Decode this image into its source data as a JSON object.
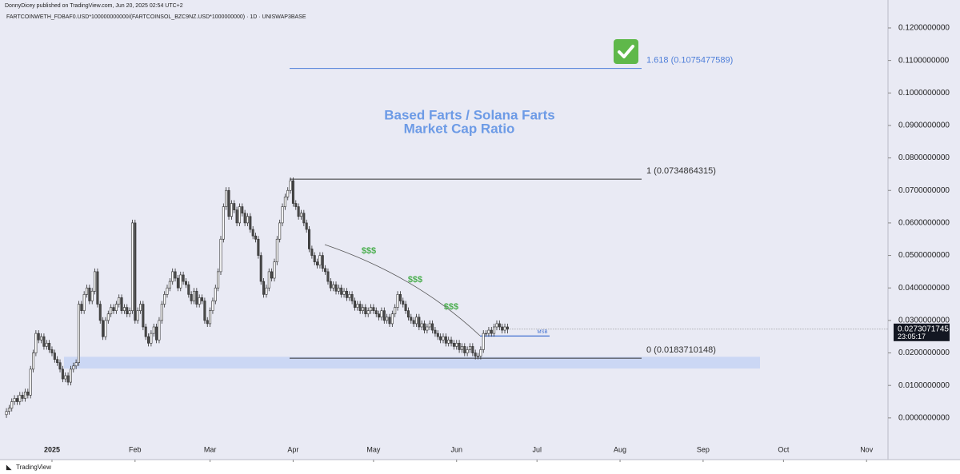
{
  "chart_data": {
    "type": "candlestick",
    "published": "DonnyDicey published on TradingView.com, Jun 20, 2025 02:54 UTC+2",
    "symbol": "FARTCOINWETH_FDBAF0.USD*100000000000/(FARTCOINSOL_BZC9NZ.USD*1000000000) · 1D · UNISWAP3BASE",
    "title_lines": [
      "Based Farts / Solana Farts",
      "Market Cap Ratio"
    ],
    "annotations": [
      "$$$",
      "$$$",
      "$$$"
    ],
    "countdown": "23:05:17",
    "brand": "TradingView",
    "up_color": "#ffffff",
    "down_color": "#4a4a4a",
    "outline_color": "#2f2f2f",
    "categories": [
      null,
      null,
      null,
      null,
      null,
      null,
      null,
      null,
      null,
      null,
      null,
      null,
      null,
      null,
      null,
      null,
      null,
      null,
      null,
      null,
      null,
      null,
      null,
      null,
      null,
      null,
      null,
      null,
      null,
      null,
      null,
      null,
      null,
      null,
      null,
      null,
      null,
      null,
      null,
      null,
      null,
      null,
      null,
      null,
      null,
      null,
      null,
      null,
      null,
      null,
      null,
      null,
      null,
      null,
      null,
      null,
      null,
      null,
      null,
      null,
      null,
      null,
      null,
      null,
      null,
      null,
      null,
      null,
      null,
      null,
      null,
      null,
      null,
      null,
      null,
      null,
      null,
      null,
      null,
      null,
      null,
      null,
      null,
      null,
      null,
      null,
      null,
      null,
      null,
      null,
      null,
      null,
      null,
      null,
      null,
      null,
      null,
      null,
      null,
      null,
      null,
      null,
      null,
      null,
      null,
      null,
      null,
      null,
      null,
      null,
      null,
      null,
      null,
      null,
      null,
      null,
      null,
      null,
      null,
      null,
      null,
      null,
      null,
      null,
      null,
      null,
      null,
      null,
      null,
      null,
      null,
      null,
      null,
      null,
      null,
      null,
      null,
      null,
      null,
      null,
      null,
      null,
      null,
      null,
      null,
      null,
      null,
      null,
      null,
      null,
      null,
      null,
      null,
      null,
      null,
      null,
      null,
      null,
      null,
      null,
      null,
      null,
      null,
      null,
      null,
      null,
      null,
      null,
      null,
      null,
      null,
      null,
      null,
      null,
      null,
      null,
      null,
      null,
      null,
      null,
      null,
      null,
      null,
      null,
      null,
      null,
      null,
      null
    ],
    "open": [
      0.001,
      0.002,
      0.003,
      0.005,
      0.006,
      0.005,
      0.007,
      0.006,
      0.008,
      0.007,
      0.015,
      0.02,
      0.026,
      0.024,
      0.025,
      0.022,
      0.023,
      0.021,
      0.02,
      0.018,
      0.017,
      0.015,
      0.012,
      0.013,
      0.011,
      0.015,
      0.016,
      0.017,
      0.035,
      0.033,
      0.038,
      0.04,
      0.036,
      0.039,
      0.045,
      0.035,
      0.03,
      0.025,
      0.03,
      0.032,
      0.034,
      0.033,
      0.035,
      0.037,
      0.033,
      0.034,
      0.032,
      0.033,
      0.06,
      0.03,
      0.033,
      0.035,
      0.028,
      0.025,
      0.023,
      0.026,
      0.028,
      0.024,
      0.03,
      0.035,
      0.038,
      0.04,
      0.042,
      0.045,
      0.043,
      0.04,
      0.044,
      0.042,
      0.041,
      0.038,
      0.036,
      0.039,
      0.035,
      0.037,
      0.036,
      0.03,
      0.029,
      0.033,
      0.036,
      0.04,
      0.045,
      0.055,
      0.065,
      0.07,
      0.062,
      0.066,
      0.064,
      0.06,
      0.065,
      0.063,
      0.06,
      0.062,
      0.058,
      0.056,
      0.055,
      0.05,
      0.042,
      0.038,
      0.04,
      0.045,
      0.043,
      0.048,
      0.055,
      0.06,
      0.065,
      0.068,
      0.07,
      0.073,
      0.066,
      0.065,
      0.062,
      0.063,
      0.06,
      0.058,
      0.052,
      0.05,
      0.048,
      0.047,
      0.05,
      0.046,
      0.045,
      0.042,
      0.04,
      0.041,
      0.039,
      0.04,
      0.038,
      0.039,
      0.037,
      0.038,
      0.036,
      0.034,
      0.035,
      0.033,
      0.034,
      0.032,
      0.033,
      0.034,
      0.033,
      0.032,
      0.031,
      0.033,
      0.03,
      0.031,
      0.029,
      0.032,
      0.034,
      0.038,
      0.036,
      0.035,
      0.033,
      0.031,
      0.03,
      0.029,
      0.031,
      0.028,
      0.029,
      0.027,
      0.028,
      0.029,
      0.027,
      0.026,
      0.025,
      0.024,
      0.025,
      0.023,
      0.024,
      0.023,
      0.022,
      0.023,
      0.021,
      0.022,
      0.02,
      0.021,
      0.022,
      0.02,
      0.019,
      0.019,
      0.021,
      0.026,
      0.026,
      0.027,
      0.026,
      0.028,
      0.029,
      0.028,
      0.027,
      0.028
    ],
    "high": [
      0.003,
      0.004,
      0.006,
      0.007,
      0.007,
      0.008,
      0.008,
      0.009,
      0.009,
      0.016,
      0.021,
      0.027,
      0.027,
      0.026,
      0.026,
      0.024,
      0.024,
      0.022,
      0.021,
      0.019,
      0.018,
      0.016,
      0.014,
      0.014,
      0.016,
      0.017,
      0.018,
      0.036,
      0.036,
      0.039,
      0.041,
      0.041,
      0.04,
      0.046,
      0.046,
      0.036,
      0.031,
      0.031,
      0.033,
      0.035,
      0.035,
      0.036,
      0.038,
      0.038,
      0.035,
      0.035,
      0.034,
      0.061,
      0.061,
      0.034,
      0.036,
      0.036,
      0.029,
      0.026,
      0.027,
      0.029,
      0.029,
      0.031,
      0.036,
      0.039,
      0.041,
      0.043,
      0.046,
      0.046,
      0.044,
      0.045,
      0.045,
      0.043,
      0.042,
      0.039,
      0.04,
      0.04,
      0.038,
      0.038,
      0.037,
      0.031,
      0.034,
      0.037,
      0.041,
      0.046,
      0.056,
      0.066,
      0.071,
      0.071,
      0.067,
      0.067,
      0.065,
      0.066,
      0.066,
      0.064,
      0.063,
      0.063,
      0.059,
      0.057,
      0.056,
      0.051,
      0.043,
      0.041,
      0.046,
      0.046,
      0.049,
      0.056,
      0.061,
      0.066,
      0.069,
      0.071,
      0.074,
      0.074,
      0.067,
      0.066,
      0.064,
      0.064,
      0.061,
      0.059,
      0.053,
      0.051,
      0.049,
      0.051,
      0.051,
      0.047,
      0.046,
      0.043,
      0.042,
      0.042,
      0.041,
      0.041,
      0.04,
      0.04,
      0.039,
      0.039,
      0.037,
      0.036,
      0.036,
      0.035,
      0.035,
      0.034,
      0.035,
      0.035,
      0.034,
      0.033,
      0.034,
      0.034,
      0.032,
      0.032,
      0.033,
      0.035,
      0.039,
      0.039,
      0.037,
      0.036,
      0.034,
      0.032,
      0.031,
      0.032,
      0.032,
      0.03,
      0.03,
      0.029,
      0.03,
      0.03,
      0.028,
      0.027,
      0.026,
      0.026,
      0.026,
      0.025,
      0.025,
      0.024,
      0.024,
      0.024,
      0.023,
      0.023,
      0.022,
      0.023,
      0.023,
      0.021,
      0.02,
      0.022,
      0.027,
      0.027,
      0.028,
      0.028,
      0.029,
      0.03,
      0.03,
      0.029,
      0.029,
      0.029
    ],
    "low": [
      0.0,
      0.001,
      0.002,
      0.004,
      0.004,
      0.004,
      0.005,
      0.005,
      0.006,
      0.006,
      0.014,
      0.019,
      0.023,
      0.023,
      0.021,
      0.021,
      0.02,
      0.019,
      0.017,
      0.016,
      0.014,
      0.011,
      0.011,
      0.01,
      0.01,
      0.014,
      0.015,
      0.016,
      0.032,
      0.032,
      0.037,
      0.035,
      0.035,
      0.038,
      0.034,
      0.029,
      0.024,
      0.024,
      0.029,
      0.031,
      0.032,
      0.032,
      0.034,
      0.032,
      0.032,
      0.031,
      0.031,
      0.032,
      0.029,
      0.029,
      0.032,
      0.027,
      0.024,
      0.022,
      0.022,
      0.025,
      0.023,
      0.023,
      0.029,
      0.034,
      0.037,
      0.039,
      0.041,
      0.042,
      0.039,
      0.039,
      0.041,
      0.04,
      0.037,
      0.035,
      0.035,
      0.034,
      0.034,
      0.035,
      0.029,
      0.028,
      0.028,
      0.032,
      0.035,
      0.039,
      0.044,
      0.054,
      0.064,
      0.061,
      0.061,
      0.063,
      0.059,
      0.059,
      0.062,
      0.059,
      0.059,
      0.057,
      0.055,
      0.054,
      0.049,
      0.041,
      0.037,
      0.037,
      0.039,
      0.042,
      0.042,
      0.047,
      0.054,
      0.059,
      0.064,
      0.067,
      0.069,
      0.065,
      0.064,
      0.061,
      0.061,
      0.059,
      0.057,
      0.051,
      0.049,
      0.047,
      0.046,
      0.046,
      0.045,
      0.044,
      0.041,
      0.039,
      0.039,
      0.038,
      0.038,
      0.037,
      0.037,
      0.036,
      0.036,
      0.035,
      0.033,
      0.033,
      0.032,
      0.032,
      0.031,
      0.031,
      0.032,
      0.032,
      0.031,
      0.03,
      0.03,
      0.029,
      0.029,
      0.028,
      0.028,
      0.031,
      0.033,
      0.035,
      0.034,
      0.032,
      0.03,
      0.029,
      0.028,
      0.028,
      0.027,
      0.027,
      0.026,
      0.026,
      0.027,
      0.026,
      0.025,
      0.024,
      0.023,
      0.023,
      0.022,
      0.022,
      0.022,
      0.021,
      0.021,
      0.02,
      0.02,
      0.019,
      0.019,
      0.02,
      0.019,
      0.018,
      0.018,
      0.018,
      0.02,
      0.025,
      0.025,
      0.025,
      0.025,
      0.027,
      0.027,
      0.026,
      0.026,
      0.026
    ],
    "close": [
      0.002,
      0.003,
      0.005,
      0.006,
      0.005,
      0.007,
      0.006,
      0.008,
      0.007,
      0.015,
      0.02,
      0.026,
      0.024,
      0.025,
      0.022,
      0.023,
      0.021,
      0.02,
      0.018,
      0.017,
      0.015,
      0.012,
      0.013,
      0.011,
      0.015,
      0.016,
      0.017,
      0.035,
      0.033,
      0.038,
      0.04,
      0.036,
      0.039,
      0.045,
      0.035,
      0.03,
      0.025,
      0.03,
      0.032,
      0.034,
      0.033,
      0.035,
      0.037,
      0.033,
      0.034,
      0.032,
      0.033,
      0.06,
      0.03,
      0.033,
      0.035,
      0.028,
      0.025,
      0.023,
      0.026,
      0.028,
      0.024,
      0.03,
      0.035,
      0.038,
      0.04,
      0.042,
      0.045,
      0.043,
      0.04,
      0.044,
      0.042,
      0.041,
      0.038,
      0.036,
      0.039,
      0.035,
      0.037,
      0.036,
      0.03,
      0.029,
      0.033,
      0.036,
      0.04,
      0.045,
      0.055,
      0.065,
      0.07,
      0.062,
      0.066,
      0.064,
      0.06,
      0.065,
      0.063,
      0.06,
      0.062,
      0.058,
      0.056,
      0.055,
      0.05,
      0.042,
      0.038,
      0.04,
      0.045,
      0.043,
      0.048,
      0.055,
      0.06,
      0.065,
      0.068,
      0.07,
      0.073,
      0.066,
      0.065,
      0.062,
      0.063,
      0.06,
      0.058,
      0.052,
      0.05,
      0.048,
      0.047,
      0.05,
      0.046,
      0.045,
      0.042,
      0.04,
      0.041,
      0.039,
      0.04,
      0.038,
      0.039,
      0.037,
      0.038,
      0.036,
      0.034,
      0.035,
      0.033,
      0.034,
      0.032,
      0.033,
      0.034,
      0.033,
      0.032,
      0.031,
      0.033,
      0.03,
      0.031,
      0.029,
      0.032,
      0.034,
      0.038,
      0.036,
      0.035,
      0.033,
      0.031,
      0.03,
      0.029,
      0.031,
      0.028,
      0.029,
      0.027,
      0.028,
      0.029,
      0.027,
      0.026,
      0.025,
      0.024,
      0.025,
      0.023,
      0.024,
      0.023,
      0.022,
      0.023,
      0.021,
      0.022,
      0.02,
      0.021,
      0.022,
      0.02,
      0.019,
      0.019,
      0.021,
      0.026,
      0.026,
      0.027,
      0.026,
      0.028,
      0.029,
      0.028,
      0.027,
      0.028,
      0.0273071745
    ],
    "xlim": [
      -2.4,
      329
    ],
    "xticks": [
      {
        "value": 17,
        "label": "2025"
      },
      {
        "value": 48,
        "label": "Feb"
      },
      {
        "value": 76,
        "label": "Mar"
      },
      {
        "value": 107,
        "label": "Apr"
      },
      {
        "value": 137,
        "label": "May"
      },
      {
        "value": 168,
        "label": "Jun"
      },
      {
        "value": 198,
        "label": "Jul"
      },
      {
        "value": 229,
        "label": "Aug"
      },
      {
        "value": 260,
        "label": "Sep"
      },
      {
        "value": 290,
        "label": "Oct"
      },
      {
        "value": 321,
        "label": "Nov"
      }
    ],
    "ylim": [
      -0.0116,
      0.1286
    ],
    "yticks": [
      {
        "value": 0,
        "label": "0.0000000000"
      },
      {
        "value": 0.01,
        "label": "0.0100000000"
      },
      {
        "value": 0.02,
        "label": "0.0200000000"
      },
      {
        "value": 0.03,
        "label": "0.0300000000"
      },
      {
        "value": 0.04,
        "label": "0.0400000000"
      },
      {
        "value": 0.05,
        "label": "0.0500000000"
      },
      {
        "value": 0.06,
        "label": "0.0600000000"
      },
      {
        "value": 0.07,
        "label": "0.0700000000"
      },
      {
        "value": 0.08,
        "label": "0.0800000000"
      },
      {
        "value": 0.09,
        "label": "0.0900000000"
      },
      {
        "value": 0.1,
        "label": "0.1000000000"
      },
      {
        "value": 0.11,
        "label": "0.1100000000"
      },
      {
        "value": 0.12,
        "label": "0.1200000000"
      }
    ],
    "fib_levels": [
      {
        "value": 0.1075477589,
        "label": "1.618 (0.1075477589)",
        "color": "#4f7fd9"
      },
      {
        "value": 0.0734864315,
        "label": "1 (0.0734864315)",
        "color": "#333333"
      },
      {
        "value": 0.0183710148,
        "label": "0 (0.0183710148)",
        "color": "#333333"
      }
    ],
    "zone": {
      "low": 0.0152,
      "high": 0.0188,
      "color": "#c6d4f3"
    },
    "msb": {
      "label": "MSB",
      "value": 0.0252,
      "color": "#3f6fd0"
    }
  }
}
